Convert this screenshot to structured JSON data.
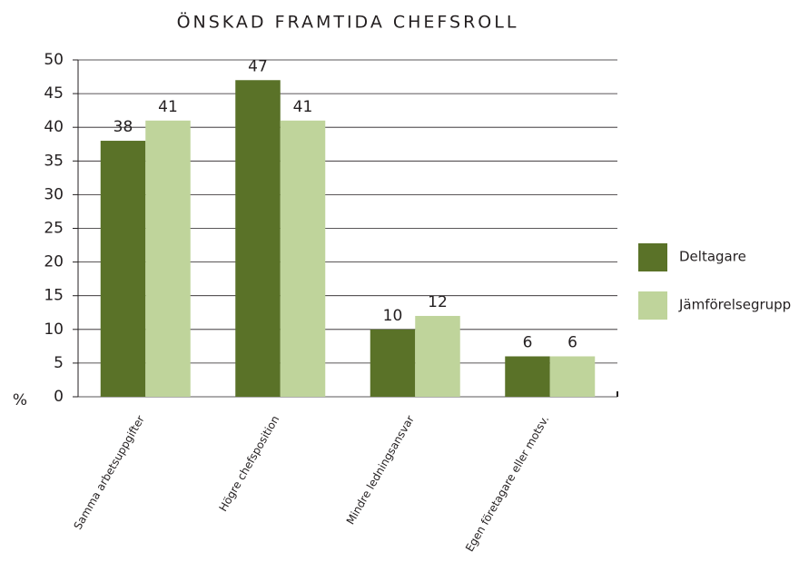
{
  "chart_data": {
    "type": "bar",
    "title": "ÖNSKAD FRAMTIDA CHEFSROLL",
    "y_label": "%",
    "categories": [
      "Samma arbetsuppgifter",
      "Högre chefsposition",
      "Mindre ledningsansvar",
      "Egen företagare eller motsv."
    ],
    "series": [
      {
        "name": "Deltagare",
        "color": "#5a7228",
        "values": [
          38,
          47,
          10,
          6
        ]
      },
      {
        "name": "Jämförelsegrupp",
        "color": "#bfd49b",
        "values": [
          41,
          41,
          12,
          6
        ]
      }
    ],
    "ylim": [
      0,
      50
    ],
    "yticks": [
      0,
      5,
      10,
      15,
      20,
      25,
      30,
      35,
      40,
      45,
      50
    ],
    "grid": true,
    "legend": "right"
  }
}
